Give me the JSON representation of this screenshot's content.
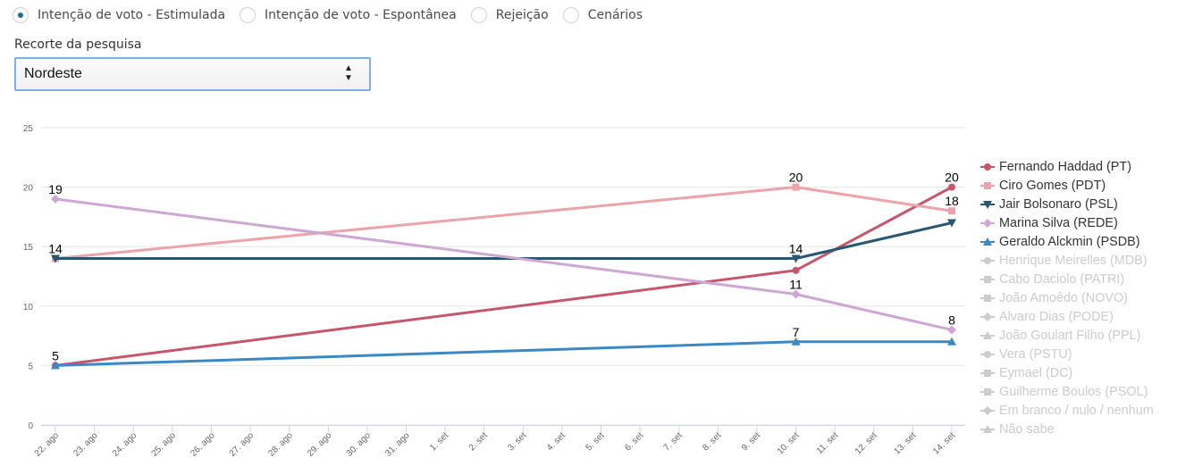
{
  "controls": {
    "radios": [
      {
        "label": "Intenção de voto - Estimulada",
        "checked": true
      },
      {
        "label": "Intenção de voto - Espontânea",
        "checked": false
      },
      {
        "label": "Rejeição",
        "checked": false
      },
      {
        "label": "Cenários",
        "checked": false
      }
    ],
    "select_label": "Recorte da pesquisa",
    "select_value": "Nordeste"
  },
  "chart_data": {
    "type": "line",
    "title": "",
    "xlabel": "",
    "ylabel": "",
    "ylim": [
      0,
      25
    ],
    "yticks": [
      0,
      5,
      10,
      15,
      20,
      25
    ],
    "grid": true,
    "legend_position": "right",
    "categories": [
      "22. ago",
      "23. ago",
      "24. ago",
      "25. ago",
      "26. ago",
      "27. ago",
      "28. ago",
      "29. ago",
      "30. ago",
      "31. ago",
      "1. set",
      "2. set",
      "3. set",
      "4. set",
      "5. set",
      "6. set",
      "7. set",
      "8. set",
      "9. set",
      "10. set",
      "11. set",
      "12. set",
      "13. set",
      "14. set"
    ],
    "series": [
      {
        "name": "Fernando Haddad (PT)",
        "color": "#c5566c",
        "marker": "circle",
        "active": true,
        "points": [
          [
            "22. ago",
            5
          ],
          [
            "10. set",
            13
          ],
          [
            "14. set",
            20
          ]
        ],
        "labels": [
          "5",
          "",
          "20"
        ]
      },
      {
        "name": "Ciro Gomes (PDT)",
        "color": "#eca3a9",
        "marker": "square",
        "active": true,
        "points": [
          [
            "22. ago",
            14
          ],
          [
            "10. set",
            20
          ],
          [
            "14. set",
            18
          ]
        ],
        "labels": [
          "",
          "20",
          "18"
        ]
      },
      {
        "name": "Jair Bolsonaro (PSL)",
        "color": "#285772",
        "marker": "triangle-down",
        "active": true,
        "points": [
          [
            "22. ago",
            14
          ],
          [
            "10. set",
            14
          ],
          [
            "14. set",
            17
          ]
        ],
        "labels": [
          "14",
          "14",
          ""
        ]
      },
      {
        "name": "Marina Silva (REDE)",
        "color": "#cfa6d5",
        "marker": "diamond",
        "active": true,
        "points": [
          [
            "22. ago",
            19
          ],
          [
            "10. set",
            11
          ],
          [
            "14. set",
            8
          ]
        ],
        "labels": [
          "19",
          "11",
          "8"
        ]
      },
      {
        "name": "Geraldo Alckmin (PSDB)",
        "color": "#3a88c4",
        "marker": "triangle",
        "active": true,
        "points": [
          [
            "22. ago",
            5
          ],
          [
            "10. set",
            7
          ],
          [
            "14. set",
            7
          ]
        ],
        "labels": [
          "",
          "7",
          ""
        ]
      },
      {
        "name": "Henrique Meirelles (MDB)",
        "color": "#cccccc",
        "marker": "circle",
        "active": false,
        "points": [],
        "labels": []
      },
      {
        "name": "Cabo Daciolo (PATRI)",
        "color": "#cccccc",
        "marker": "square",
        "active": false,
        "points": [],
        "labels": []
      },
      {
        "name": "João Amoêdo (NOVO)",
        "color": "#cccccc",
        "marker": "square",
        "active": false,
        "points": [],
        "labels": []
      },
      {
        "name": "Alvaro Dias (PODE)",
        "color": "#cccccc",
        "marker": "diamond",
        "active": false,
        "points": [],
        "labels": []
      },
      {
        "name": "João Goulart Filho (PPL)",
        "color": "#cccccc",
        "marker": "triangle",
        "active": false,
        "points": [],
        "labels": []
      },
      {
        "name": "Vera (PSTU)",
        "color": "#cccccc",
        "marker": "circle",
        "active": false,
        "points": [],
        "labels": []
      },
      {
        "name": "Eymael (DC)",
        "color": "#cccccc",
        "marker": "square",
        "active": false,
        "points": [],
        "labels": []
      },
      {
        "name": "Guilherme Boulos (PSOL)",
        "color": "#cccccc",
        "marker": "square",
        "active": false,
        "points": [],
        "labels": []
      },
      {
        "name": "Em branco / nulo / nenhum",
        "color": "#cccccc",
        "marker": "diamond",
        "active": false,
        "points": [],
        "labels": []
      },
      {
        "name": "Não sabe",
        "color": "#cccccc",
        "marker": "triangle",
        "active": false,
        "points": [],
        "labels": []
      }
    ]
  }
}
